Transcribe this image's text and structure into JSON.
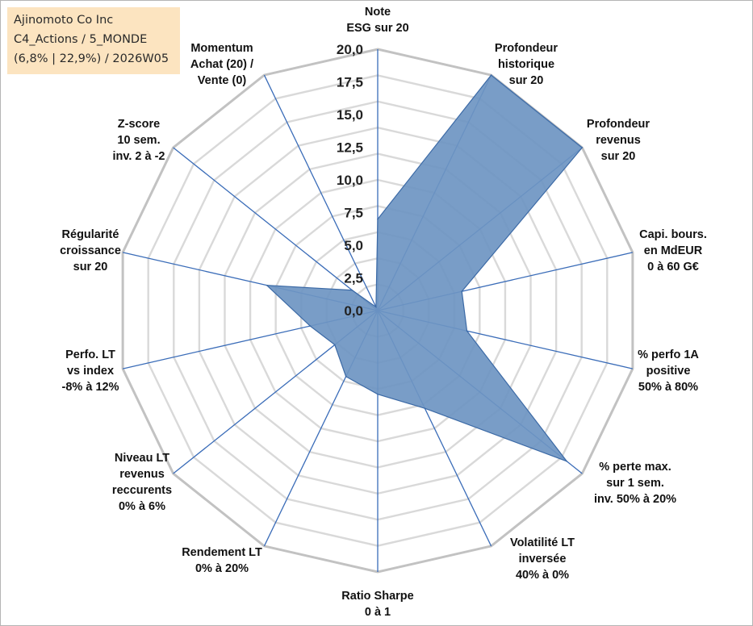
{
  "title": {
    "line1": "Ajinomoto Co Inc",
    "line2": "C4_Actions / 5_MONDE",
    "line3": "(6,8% | 22,9%) / 2026W05"
  },
  "chart_data": {
    "type": "radar",
    "rmin": 0,
    "rmax": 20,
    "ticks": [
      "0,0",
      "2,5",
      "5,0",
      "7,5",
      "10,0",
      "12,5",
      "15,0",
      "17,5",
      "20,0"
    ],
    "tick_values": [
      0,
      2.5,
      5,
      7.5,
      10,
      12.5,
      15,
      17.5,
      20
    ],
    "grid_steps": 10,
    "grid": true,
    "legend": "none",
    "axes": [
      {
        "label": [
          "Note",
          "ESG sur 20"
        ],
        "value": 7.0
      },
      {
        "label": [
          "Profondeur",
          "historique",
          "sur 20"
        ],
        "value": 20.0
      },
      {
        "label": [
          "Profondeur",
          "revenus",
          "sur 20"
        ],
        "value": 20.0
      },
      {
        "label": [
          "Capi. bours.",
          "en MdEUR",
          "0 à 60 G€"
        ],
        "value": 6.6
      },
      {
        "label": [
          "% perfo 1A",
          "positive",
          "50% à 80%"
        ],
        "value": 7.0
      },
      {
        "label": [
          "% perte max.",
          "sur 1 sem.",
          "inv. 50% à 20%"
        ],
        "value": 18.5
      },
      {
        "label": [
          "Volatilité LT",
          "inversée",
          "40% à 0%"
        ],
        "value": 8.3
      },
      {
        "label": [
          "Ratio Sharpe",
          "0 à 1"
        ],
        "value": 6.4
      },
      {
        "label": [
          "Rendement LT",
          "0% à 20%"
        ],
        "value": 5.6
      },
      {
        "label": [
          "Niveau LT",
          "revenus",
          "reccurents",
          "0% à 6%"
        ],
        "value": 4.2
      },
      {
        "label": [
          "Perfo. LT",
          "vs index",
          "-8% à 12%"
        ],
        "value": 5.3
      },
      {
        "label": [
          "Régularité",
          "croissance",
          "sur 20"
        ],
        "value": 8.7
      },
      {
        "label": [
          "Z-score",
          "10 sem.",
          "inv. 2 à -2"
        ],
        "value": 2.5
      },
      {
        "label": [
          "Momentum",
          "Achat (20) /",
          "Vente (0)"
        ],
        "value": 0.3
      }
    ],
    "colors": {
      "fill": "#6e95c2",
      "stroke": "#3c6aa6",
      "spoke": "#3a6cb8",
      "grid_outer": "#c2c2c2",
      "grid_inner": "#d9d9d9"
    }
  }
}
